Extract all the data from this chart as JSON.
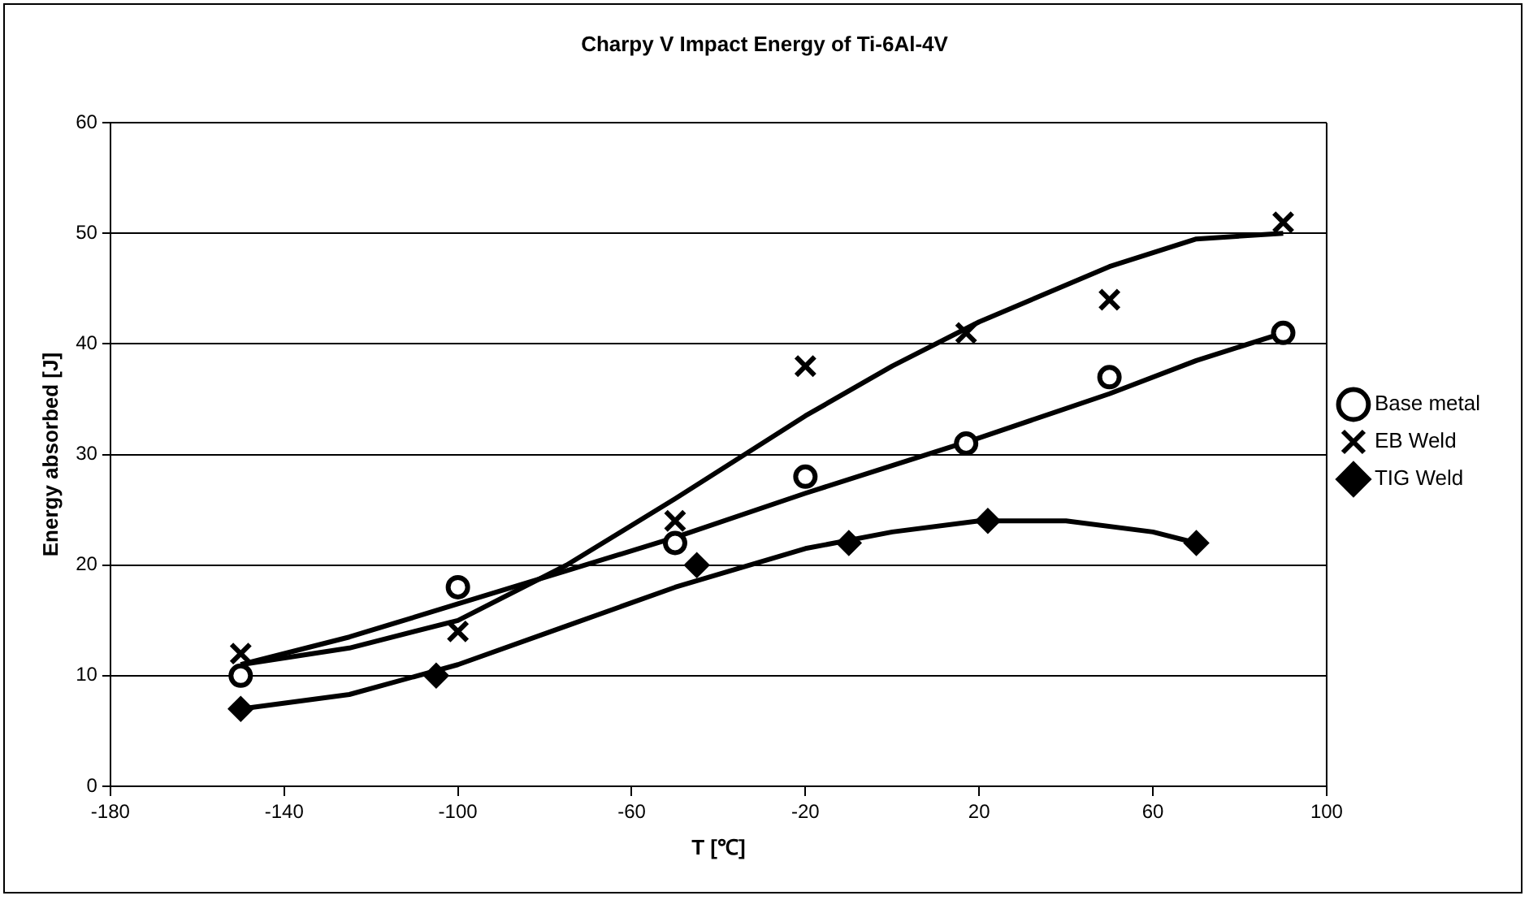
{
  "chart_data": {
    "type": "scatter",
    "title": "Charpy V Impact Energy of Ti-6Al-4V",
    "xlabel": "T [℃]",
    "ylabel": "Energy absorbed [J]",
    "xlim": [
      -180,
      100
    ],
    "xticks": [
      -180,
      -140,
      -100,
      -60,
      -20,
      20,
      60,
      100
    ],
    "ylim": [
      0,
      60
    ],
    "yticks": [
      0,
      10,
      20,
      30,
      40,
      50,
      60
    ],
    "grid": "y",
    "legend": "right",
    "series": [
      {
        "name": "Base metal",
        "color": "#000000",
        "marker": "circle",
        "x": [
          -150,
          -100,
          -50,
          -20,
          17,
          50,
          90
        ],
        "values": [
          10,
          18,
          22,
          28,
          31,
          37,
          41
        ]
      },
      {
        "name": "EB Weld",
        "color": "#000000",
        "marker": "cross",
        "x": [
          -150,
          -100,
          -50,
          -20,
          17,
          50,
          90
        ],
        "values": [
          12,
          14,
          24,
          38,
          41,
          44,
          51
        ]
      },
      {
        "name": "TIG Weld",
        "color": "#000000",
        "marker": "diamond",
        "x": [
          -150,
          -105,
          -45,
          -10,
          22,
          70
        ],
        "values": [
          7,
          10,
          20,
          22,
          24,
          22
        ]
      },
      {
        "type": "line",
        "color": "#000000",
        "marker": "none",
        "x": [
          -150,
          -125,
          -100,
          -75,
          -50,
          -20,
          0,
          20,
          50,
          70,
          90
        ],
        "values": [
          11,
          13.5,
          16.5,
          19.5,
          22.5,
          26.5,
          29,
          31.5,
          35.5,
          38.5,
          41
        ]
      },
      {
        "type": "line",
        "color": "#000000",
        "marker": "none",
        "x": [
          -150,
          -125,
          -100,
          -75,
          -50,
          -20,
          0,
          20,
          50,
          70,
          90
        ],
        "values": [
          11,
          12.5,
          15,
          20,
          26,
          33.5,
          38,
          42,
          47,
          49.5,
          50
        ]
      },
      {
        "type": "line",
        "color": "#000000",
        "marker": "none",
        "x": [
          -150,
          -125,
          -100,
          -75,
          -50,
          -20,
          0,
          20,
          40,
          60,
          70
        ],
        "values": [
          7,
          8.3,
          11,
          14.5,
          18,
          21.5,
          23,
          24,
          24,
          23,
          22
        ]
      }
    ]
  }
}
